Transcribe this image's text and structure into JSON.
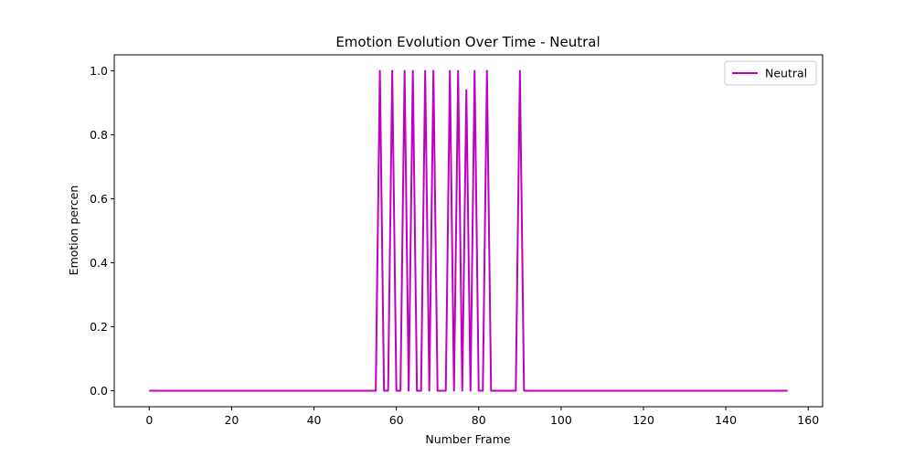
{
  "chart_data": {
    "type": "line",
    "title": "Emotion Evolution Over Time - Neutral",
    "xlabel": "Number Frame",
    "ylabel": "Emotion percen",
    "xlim": [
      -8.5,
      163.5
    ],
    "ylim": [
      -0.05,
      1.05
    ],
    "xticks": [
      0,
      20,
      40,
      60,
      80,
      100,
      120,
      140,
      160
    ],
    "yticks": [
      0.0,
      0.2,
      0.4,
      0.6,
      0.8,
      1.0
    ],
    "xtick_labels": [
      "0",
      "20",
      "40",
      "60",
      "80",
      "100",
      "120",
      "140",
      "160"
    ],
    "ytick_labels": [
      "0.0",
      "0.2",
      "0.4",
      "0.6",
      "0.8",
      "1.0"
    ],
    "grid": false,
    "legend_position": "top-right",
    "series": [
      {
        "name": "Neutral",
        "color": "#bf00bf",
        "x": [
          0,
          55,
          56,
          57,
          58,
          59,
          60,
          61,
          62,
          63,
          64,
          65,
          66,
          67,
          68,
          69,
          70,
          72,
          73,
          74,
          75,
          76,
          77,
          78,
          79,
          80,
          81,
          82,
          83,
          89,
          90,
          91,
          155
        ],
        "y": [
          0,
          0,
          1,
          0,
          0,
          1,
          0,
          0,
          1,
          0,
          1,
          0,
          0,
          1,
          0,
          1,
          0,
          0,
          1,
          0,
          1,
          0,
          0.94,
          0,
          1,
          0,
          0,
          1,
          0,
          0,
          1,
          0,
          0
        ]
      }
    ]
  }
}
